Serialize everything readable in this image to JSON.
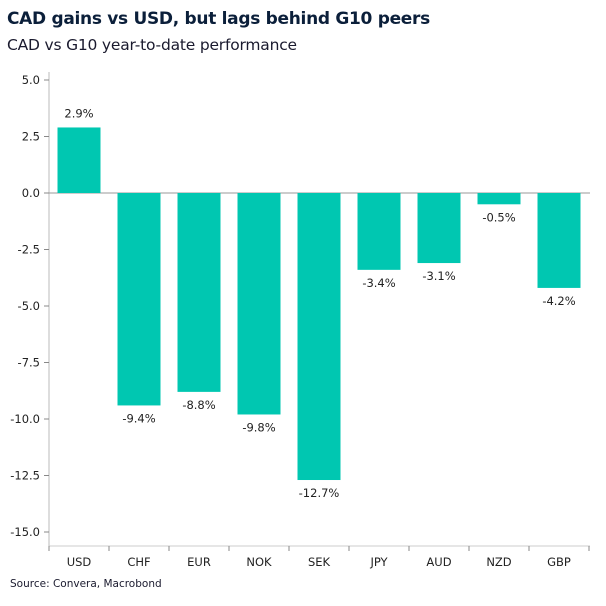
{
  "title": "CAD gains vs USD, but lags behind G10 peers",
  "subtitle": "CAD vs G10 year-to-date performance",
  "source": "Source: Convera, Macrobond",
  "chart_data": {
    "type": "bar",
    "title": "CAD gains vs USD, but lags behind G10 peers",
    "subtitle": "CAD vs G10 year-to-date performance",
    "categories": [
      "USD",
      "CHF",
      "EUR",
      "NOK",
      "SEK",
      "JPY",
      "AUD",
      "NZD",
      "GBP"
    ],
    "values": [
      2.9,
      -9.4,
      -8.8,
      -9.8,
      -12.7,
      -3.4,
      -3.1,
      -0.5,
      -4.2
    ],
    "data_labels": [
      "2.9%",
      "-9.4%",
      "-8.8%",
      "-9.8%",
      "-12.7%",
      "-3.4%",
      "-3.1%",
      "-0.5%",
      "-4.2%"
    ],
    "yticks": [
      "5.0",
      "2.5",
      "0.0",
      "-2.5",
      "-5.0",
      "-7.5",
      "-10.0",
      "-12.5",
      "-15.0"
    ],
    "ylim": [
      -15,
      5
    ],
    "grid": false,
    "bar_color": "#00c7b1",
    "xlabel": "",
    "ylabel": ""
  }
}
